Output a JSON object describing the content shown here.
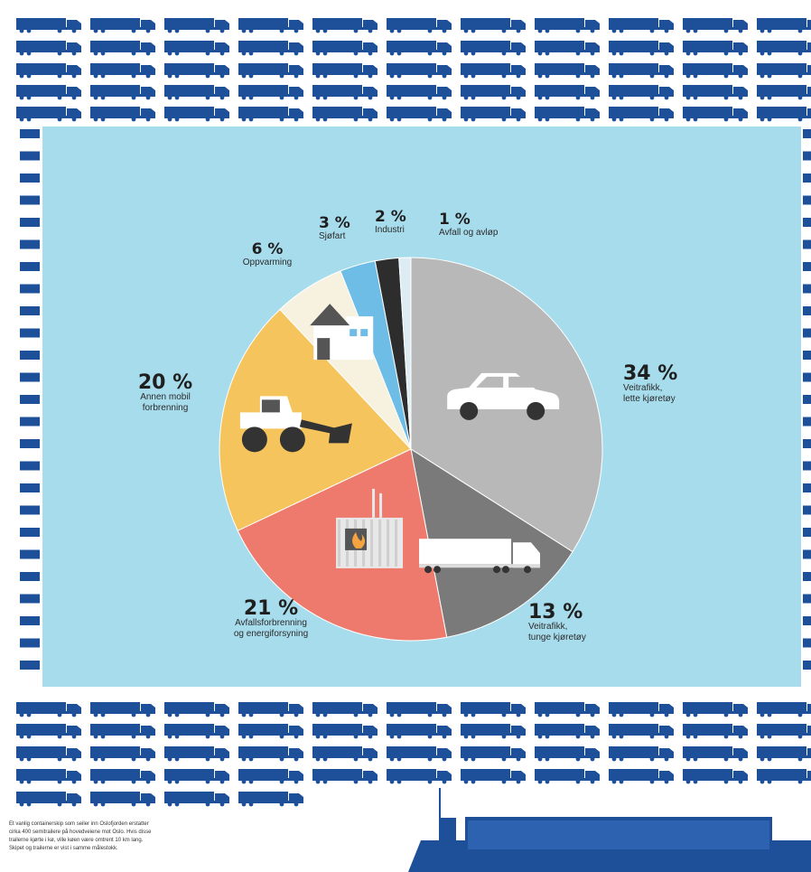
{
  "colors": {
    "truck_blue": "#1e4f99",
    "panel_bg": "#a7dcec",
    "ship_blue": "#1e4f99"
  },
  "chart_data": {
    "type": "pie",
    "title": "",
    "slices": [
      {
        "value": 34,
        "pct_label": "34 %",
        "label_lines": [
          "Veitrafikk,",
          "lette kjøretøy"
        ],
        "color": "#b8b8b8",
        "icon": "car-icon"
      },
      {
        "value": 13,
        "pct_label": "13 %",
        "label_lines": [
          "Veitrafikk,",
          "tunge kjøretøy"
        ],
        "color": "#7a7a7a",
        "icon": "truck-icon"
      },
      {
        "value": 21,
        "pct_label": "21 %",
        "label_lines": [
          "Avfallsforbrenning",
          "og energiforsyning"
        ],
        "color": "#ee7a6d",
        "icon": "factory-icon"
      },
      {
        "value": 20,
        "pct_label": "20 %",
        "label_lines": [
          "Annen mobil",
          "forbrenning"
        ],
        "color": "#f5c45d",
        "icon": "wheel-loader-icon"
      },
      {
        "value": 6,
        "pct_label": "6 %",
        "label_lines": [
          "Oppvarming"
        ],
        "color": "#f7f1df",
        "icon": "house-icon"
      },
      {
        "value": 3,
        "pct_label": "3 %",
        "label_lines": [
          "Sjøfart"
        ],
        "color": "#6dbde7",
        "icon": ""
      },
      {
        "value": 2,
        "pct_label": "2 %",
        "label_lines": [
          "Industri"
        ],
        "color": "#2d2d2d",
        "icon": ""
      },
      {
        "value": 1,
        "pct_label": "1 %",
        "label_lines": [
          "Avfall og avløp"
        ],
        "color": "#dcecf2",
        "icon": ""
      }
    ]
  },
  "caption": {
    "lines": [
      "Et vanlig containerskip som seiler inn Oslofjorden erstatter",
      "cirka 400 semitrailere på hovedveiene mot Oslo. Hvis disse",
      "trailerne kjørte i kø, ville køen være omtrent 10 km lang.",
      "Skipet og trailerne er vist i samme målestokk."
    ]
  }
}
